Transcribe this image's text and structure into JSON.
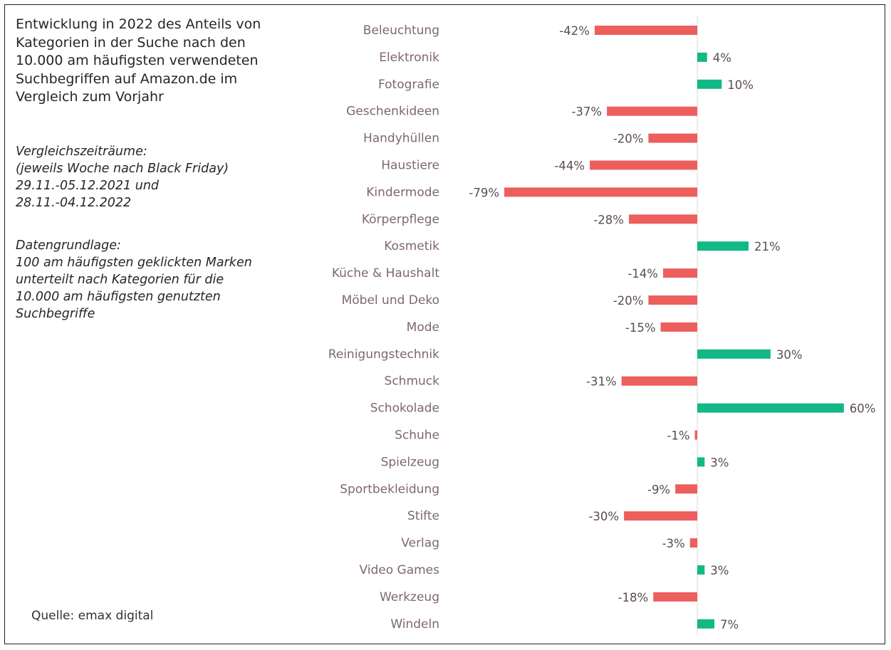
{
  "title": "Entwicklung in 2022 des Anteils von\nKategorien in der Suche nach den\n10.000 am häufigsten verwendeten\nSuchbegriffen auf Amazon.de im\nVergleich zum Vorjahr",
  "notes": {
    "period": "Vergleichszeiträume:\n(jeweils Woche nach Black Friday)\n29.11.-05.12.2021 und\n28.11.-04.12.2022",
    "basis": "Datengrundlage:\n100 am häufigsten geklickten Marken\nunterteilt nach Kategorien für die\n10.000 am häufigsten genutzten\nSuchbegriffe"
  },
  "source": "Quelle: emax digital",
  "colors": {
    "negative": "#ec5f5c",
    "positive": "#12b886",
    "axis": "#d9d9d9"
  },
  "chart_data": {
    "type": "bar",
    "orientation": "horizontal",
    "unit": "%",
    "categories": [
      "Beleuchtung",
      "Elektronik",
      "Fotografie",
      "Geschenkideen",
      "Handyhüllen",
      "Haustiere",
      "Kindermode",
      "Körperpflege",
      "Kosmetik",
      "Küche & Haushalt",
      "Möbel und Deko",
      "Mode",
      "Reinigungstechnik",
      "Schmuck",
      "Schokolade",
      "Schuhe",
      "Spielzeug",
      "Sportbekleidung",
      "Stifte",
      "Verlag",
      "Video Games",
      "Werkzeug",
      "Windeln"
    ],
    "values": [
      -42,
      4,
      10,
      -37,
      -20,
      -44,
      -79,
      -28,
      21,
      -14,
      -20,
      -15,
      30,
      -31,
      60,
      -1,
      3,
      -9,
      -30,
      -3,
      3,
      -18,
      7
    ],
    "labels": [
      "-42%",
      "4%",
      "10%",
      "-37%",
      "-20%",
      "-44%",
      "-79%",
      "-28%",
      "21%",
      "-14%",
      "-20%",
      "-15%",
      "30%",
      "-31%",
      "60%",
      "-1%",
      "3%",
      "-9%",
      "-30%",
      "-3%",
      "3%",
      "-18%",
      "7%"
    ],
    "xlim": [
      -80,
      60
    ],
    "grid": false,
    "legend": false
  }
}
